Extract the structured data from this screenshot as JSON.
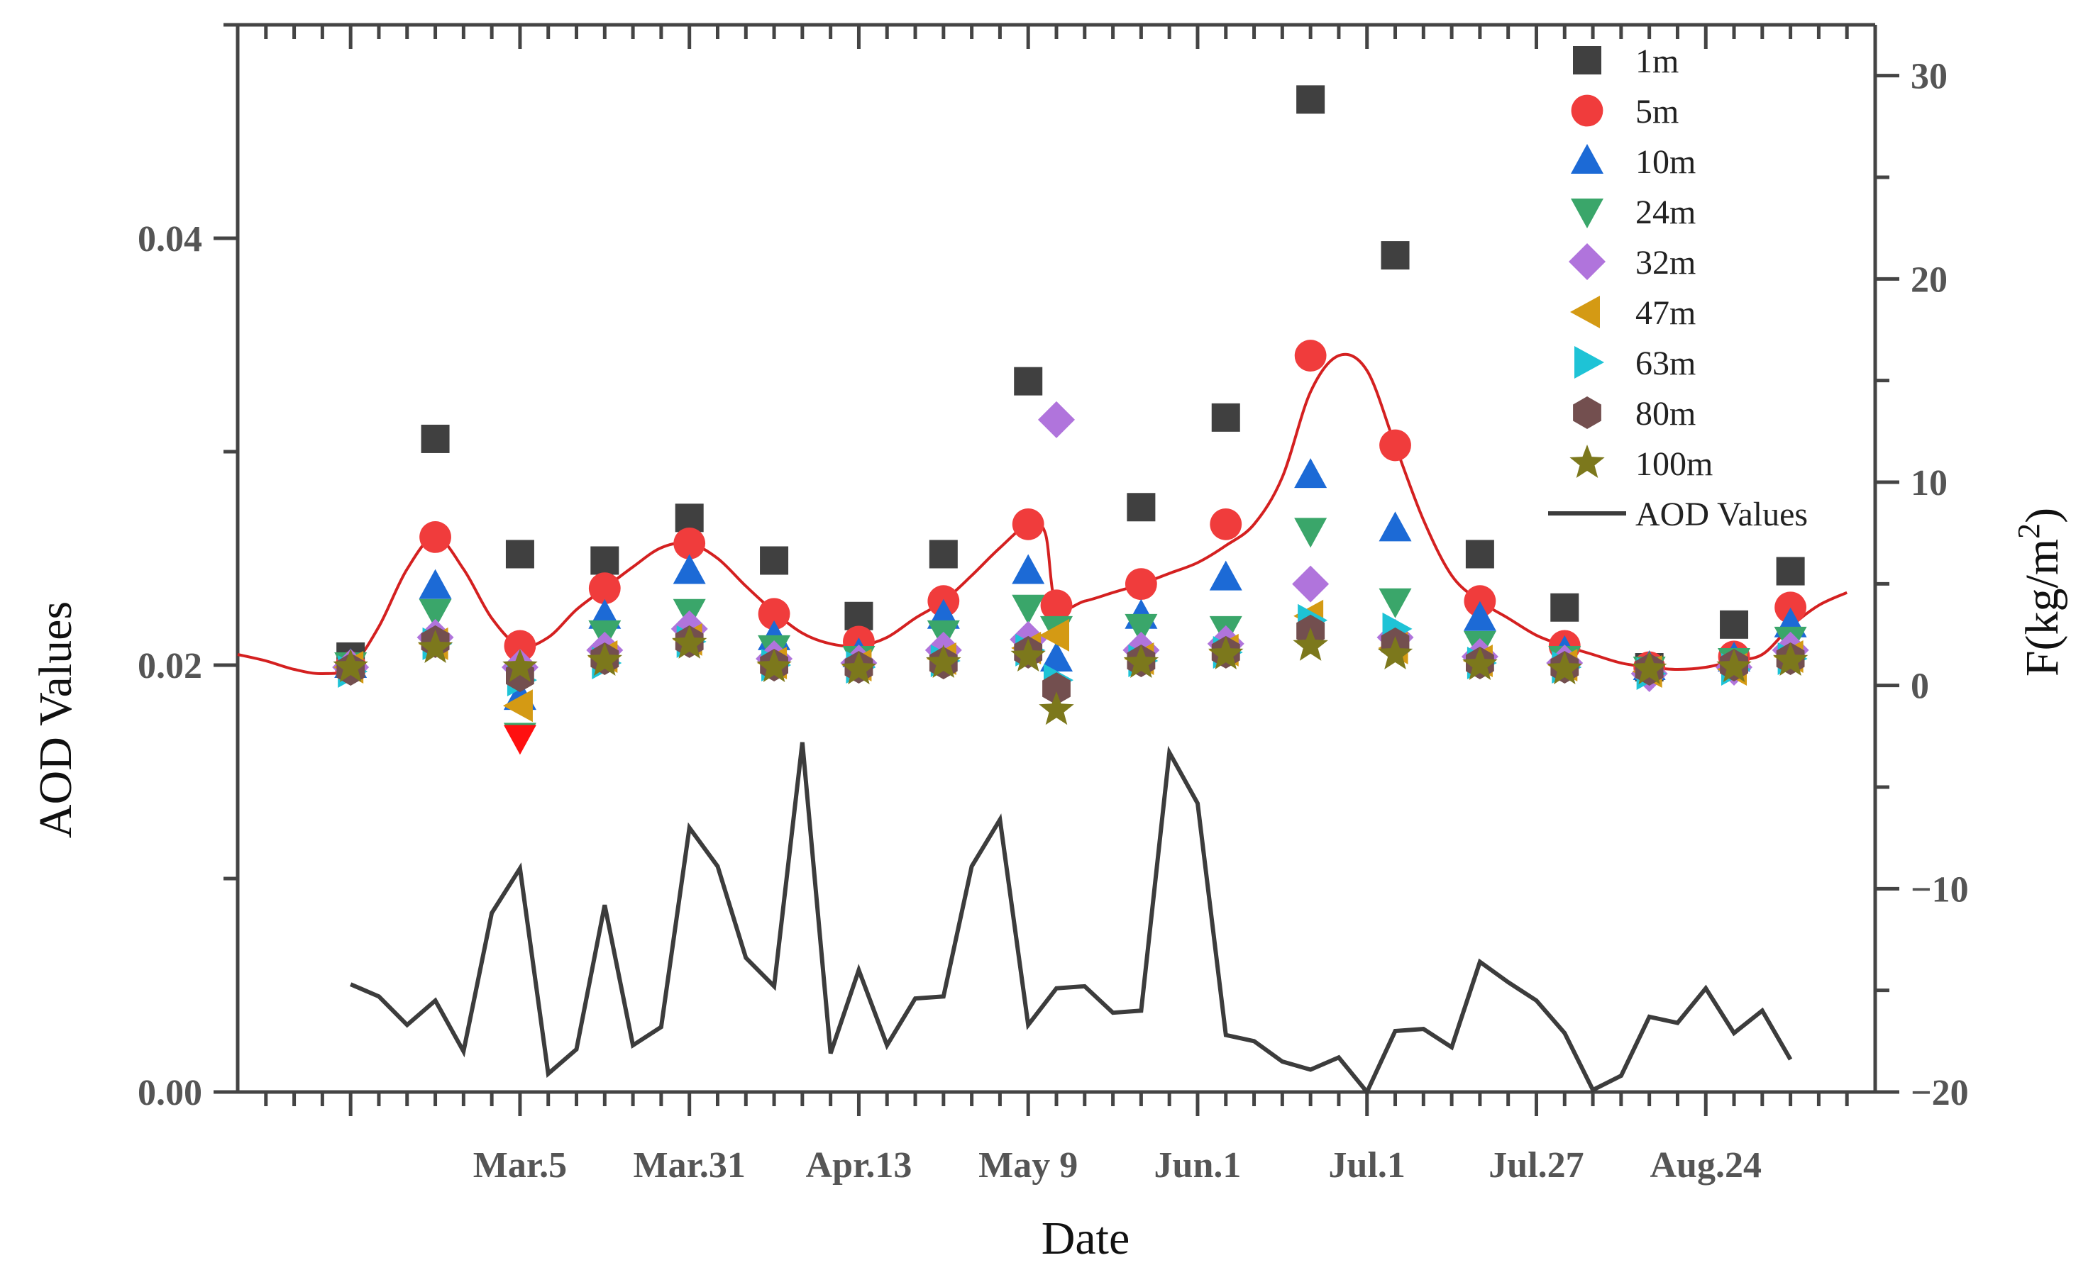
{
  "chart_data": {
    "type": "scatter",
    "title": "",
    "xlabel": "Date",
    "ylabel": "AOD Values",
    "y2label": "F(kg/m²)",
    "ylabel_right_base": "F(kg/m",
    "ylabel_right_exp": "2",
    "ylabel_right_close": ")",
    "xlim": [
      0,
      58
    ],
    "ylim": [
      0.0,
      0.05
    ],
    "y2lim": [
      -20,
      32.5
    ],
    "x_ticks": [
      {
        "x": 10,
        "label": "Mar.5"
      },
      {
        "x": 16,
        "label": "Mar.31"
      },
      {
        "x": 22,
        "label": "Apr.13"
      },
      {
        "x": 28,
        "label": "May 9"
      },
      {
        "x": 34,
        "label": "Jun.1"
      },
      {
        "x": 40,
        "label": "Jul.1"
      },
      {
        "x": 46,
        "label": "Jul.27"
      },
      {
        "x": 52,
        "label": "Aug.24"
      }
    ],
    "y_ticks": [
      {
        "v": 0.0,
        "label": "0.00"
      },
      {
        "v": 0.02,
        "label": "0.02"
      },
      {
        "v": 0.04,
        "label": "0.04"
      }
    ],
    "y2_ticks": [
      {
        "v": -20,
        "label": "−20"
      },
      {
        "v": -10,
        "label": "−10"
      },
      {
        "v": 0,
        "label": "0"
      },
      {
        "v": 10,
        "label": "10"
      },
      {
        "v": 20,
        "label": "20"
      },
      {
        "v": 30,
        "label": "30"
      }
    ],
    "scatter_x": [
      4,
      7,
      10,
      13,
      16,
      19,
      22,
      25,
      28,
      29,
      32,
      35,
      38,
      41,
      44,
      47,
      50,
      53,
      55,
      57
    ],
    "series": [
      {
        "name": "1m",
        "marker": "square",
        "color": "#404040",
        "values": [
          0.0204,
          0.0306,
          0.0252,
          0.0249,
          0.0269,
          0.0249,
          0.0223,
          0.0252,
          0.0333,
          null,
          0.0274,
          0.0316,
          0.0465,
          0.0392,
          0.0252,
          0.0227,
          0.0199,
          0.0219,
          0.0244,
          null
        ]
      },
      {
        "name": "5m",
        "marker": "circle",
        "color": "#f03c3c",
        "values": [
          0.0199,
          0.026,
          0.0209,
          0.0236,
          0.0257,
          0.0224,
          0.0211,
          0.023,
          0.0266,
          0.0228,
          0.0238,
          0.0266,
          0.0345,
          0.0303,
          0.023,
          0.0209,
          0.0199,
          0.0204,
          0.0227,
          null
        ]
      },
      {
        "name": "10m",
        "marker": "triangle-up",
        "color": "#1c6ad6",
        "values": [
          0.02,
          0.0237,
          0.0185,
          0.0223,
          0.0244,
          0.0213,
          0.0205,
          0.0223,
          0.0244,
          0.0203,
          0.0223,
          0.0241,
          0.0289,
          0.0264,
          0.0222,
          0.0206,
          0.0199,
          0.0203,
          0.0219,
          null
        ]
      },
      {
        "name": "24m",
        "marker": "triangle-down",
        "color": "#3aa66a",
        "values": [
          0.02,
          0.0225,
          0.0167,
          0.0215,
          0.0225,
          0.0208,
          0.0203,
          0.0215,
          0.0227,
          0.0217,
          0.0218,
          0.0217,
          0.0263,
          0.023,
          0.021,
          0.0203,
          0.0198,
          0.0202,
          0.0212,
          null
        ]
      },
      {
        "name": "32m",
        "marker": "diamond",
        "color": "#b074dc",
        "values": [
          0.0199,
          0.0213,
          0.0199,
          0.0207,
          0.0217,
          0.0203,
          0.0201,
          0.0207,
          0.0212,
          0.0315,
          0.0207,
          0.021,
          0.0238,
          0.0213,
          0.0204,
          0.0201,
          0.0196,
          0.0199,
          0.0207,
          null
        ]
      },
      {
        "name": "47m",
        "marker": "triangle-left",
        "color": "#d49a14",
        "values": [
          0.0199,
          0.021,
          0.0181,
          0.0204,
          0.0212,
          0.0201,
          0.02,
          0.0203,
          0.0208,
          0.0214,
          0.0203,
          0.0207,
          0.0223,
          0.0208,
          0.0202,
          0.02,
          0.0197,
          0.0198,
          0.0204,
          null
        ]
      },
      {
        "name": "63m",
        "marker": "triangle-right",
        "color": "#1ec3d6",
        "values": [
          0.0197,
          0.021,
          0.0193,
          0.0201,
          0.0211,
          0.02,
          0.0199,
          0.0202,
          0.0207,
          0.0193,
          0.0202,
          0.0206,
          0.0221,
          0.0217,
          0.0201,
          0.0199,
          0.0196,
          0.0198,
          0.0203,
          null
        ]
      },
      {
        "name": "80m",
        "marker": "hexagon",
        "color": "#734f4f",
        "values": [
          0.0198,
          0.0211,
          0.0195,
          0.0203,
          0.0211,
          0.02,
          0.0199,
          0.0201,
          0.0206,
          0.0189,
          0.0202,
          0.0206,
          0.0216,
          0.021,
          0.0201,
          0.0199,
          0.0198,
          0.02,
          0.0203,
          null
        ]
      },
      {
        "name": "100m",
        "marker": "star",
        "color": "#7c781c",
        "values": [
          0.0199,
          0.0208,
          0.0199,
          0.0202,
          0.021,
          0.0199,
          0.0198,
          0.0201,
          0.0204,
          0.0179,
          0.0201,
          0.0205,
          0.0209,
          0.0205,
          0.02,
          0.0198,
          0.0198,
          0.0199,
          0.0202,
          null
        ]
      }
    ],
    "extra_markers": [
      {
        "x": 10,
        "y": 0.0166,
        "marker": "triangle-down",
        "color": "#ff1010"
      }
    ],
    "red_curve": {
      "color": "#d42020",
      "x": [
        0,
        1,
        2,
        3,
        4,
        5,
        6,
        7,
        8,
        9,
        10,
        11,
        12,
        13,
        14,
        15,
        16,
        17,
        18,
        19,
        20,
        21,
        22,
        23,
        24,
        25,
        26,
        27,
        28,
        28.6,
        29,
        30,
        31,
        32,
        33,
        34,
        35,
        36,
        37,
        38,
        39,
        40,
        41,
        42,
        43,
        44,
        45,
        46,
        47,
        48,
        49,
        50,
        51,
        52,
        53,
        54,
        55,
        56,
        57
      ],
      "values": [
        0.0205,
        0.0202,
        0.0198,
        0.0196,
        0.0199,
        0.0218,
        0.0245,
        0.026,
        0.0245,
        0.0222,
        0.0209,
        0.0213,
        0.0226,
        0.0236,
        0.0246,
        0.0255,
        0.0257,
        0.025,
        0.0237,
        0.0225,
        0.0215,
        0.021,
        0.0209,
        0.0213,
        0.0222,
        0.023,
        0.0242,
        0.0255,
        0.0266,
        0.0262,
        0.0228,
        0.023,
        0.0234,
        0.0238,
        0.0243,
        0.0248,
        0.0256,
        0.0266,
        0.0288,
        0.0328,
        0.0345,
        0.0338,
        0.0303,
        0.0268,
        0.0242,
        0.023,
        0.0222,
        0.0214,
        0.0209,
        0.0205,
        0.0201,
        0.0199,
        0.0198,
        0.0199,
        0.0202,
        0.0205,
        0.0218,
        0.0228,
        0.0234
      ]
    },
    "line_series": {
      "name": "AOD Values",
      "axis": "right",
      "color": "#3c3c3c",
      "x": [
        4,
        5,
        6,
        7,
        8,
        9,
        10,
        11,
        12,
        13,
        14,
        15,
        16,
        17,
        18,
        19,
        20,
        21,
        22,
        23,
        24,
        25,
        26,
        27,
        28,
        29,
        30,
        31,
        32,
        33,
        34,
        35,
        36,
        37,
        38,
        39,
        40,
        41,
        42,
        43,
        44,
        45,
        46,
        47,
        48,
        49,
        50,
        51,
        52,
        53,
        54,
        55,
        56,
        57
      ],
      "values": [
        -14.7,
        -15.3,
        -16.7,
        -15.5,
        -18.0,
        -11.2,
        -9.0,
        -19.1,
        -17.9,
        -10.8,
        -17.7,
        -16.8,
        -7.0,
        -8.9,
        -13.4,
        -14.8,
        -2.8,
        -18.1,
        -14.0,
        -17.7,
        -15.4,
        -15.3,
        -8.9,
        -6.6,
        -16.7,
        -14.9,
        -14.8,
        -16.1,
        -16.0,
        -3.3,
        -5.8,
        -17.2,
        -17.5,
        -18.5,
        -18.9,
        -18.3,
        -20.0,
        -17.0,
        -16.9,
        -17.8,
        -13.6,
        -14.6,
        -15.5,
        -17.1,
        -19.9,
        -19.2,
        -16.3,
        -16.6,
        -14.9,
        -17.1,
        -16.0,
        -18.4,
        null,
        null
      ]
    },
    "legend": {
      "placement": "top-right",
      "entries": [
        {
          "label": "1m",
          "marker": "square",
          "color": "#404040"
        },
        {
          "label": "5m",
          "marker": "circle",
          "color": "#f03c3c"
        },
        {
          "label": "10m",
          "marker": "triangle-up",
          "color": "#1c6ad6"
        },
        {
          "label": "24m",
          "marker": "triangle-down",
          "color": "#3aa66a"
        },
        {
          "label": "32m",
          "marker": "diamond",
          "color": "#b074dc"
        },
        {
          "label": "47m",
          "marker": "triangle-left",
          "color": "#d49a14"
        },
        {
          "label": "63m",
          "marker": "triangle-right",
          "color": "#1ec3d6"
        },
        {
          "label": "80m",
          "marker": "hexagon",
          "color": "#734f4f"
        },
        {
          "label": "100m",
          "marker": "star",
          "color": "#7c781c"
        },
        {
          "label": "AOD Values",
          "marker": "line",
          "color": "#3c3c3c"
        }
      ]
    }
  }
}
